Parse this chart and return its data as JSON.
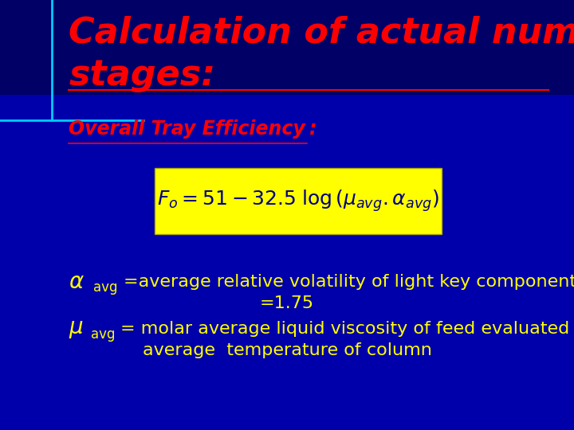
{
  "bg_color": "#0000AA",
  "title_line1": "Calculation of actual number of",
  "title_line2": "stages:",
  "title_color": "#FF0000",
  "title_fontsize": 32,
  "subtitle": "Overall Tray Efficiency",
  "subtitle_colon": ":",
  "subtitle_color": "#FF0000",
  "subtitle_fontsize": 17,
  "formula_box_color": "#FFFF00",
  "formula_text": "$F_o = 51 - 32.5 \\; \\log\\left( \\mu_{avg} . \\alpha_{avg} \\right)$",
  "formula_fontsize": 18,
  "body_color": "#FFFF00",
  "body_fontsize": 16,
  "alpha_line1": "=average relative volatility of light key component",
  "alpha_line2": "=1.75",
  "mu_line1": "= molar average liquid viscosity of feed evaluated at",
  "mu_line2": "average  temperature of column",
  "title_bg_color": "#000066"
}
